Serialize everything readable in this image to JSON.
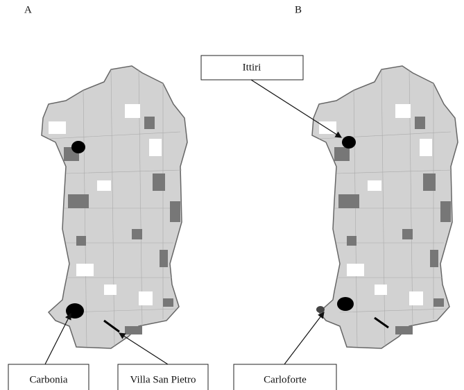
{
  "panels": [
    {
      "label": "A",
      "callouts": [
        "Carbonia",
        "Villa San Pietro"
      ]
    },
    {
      "label": "B",
      "callouts": [
        "Ittiri",
        "Carloforte"
      ]
    }
  ]
}
